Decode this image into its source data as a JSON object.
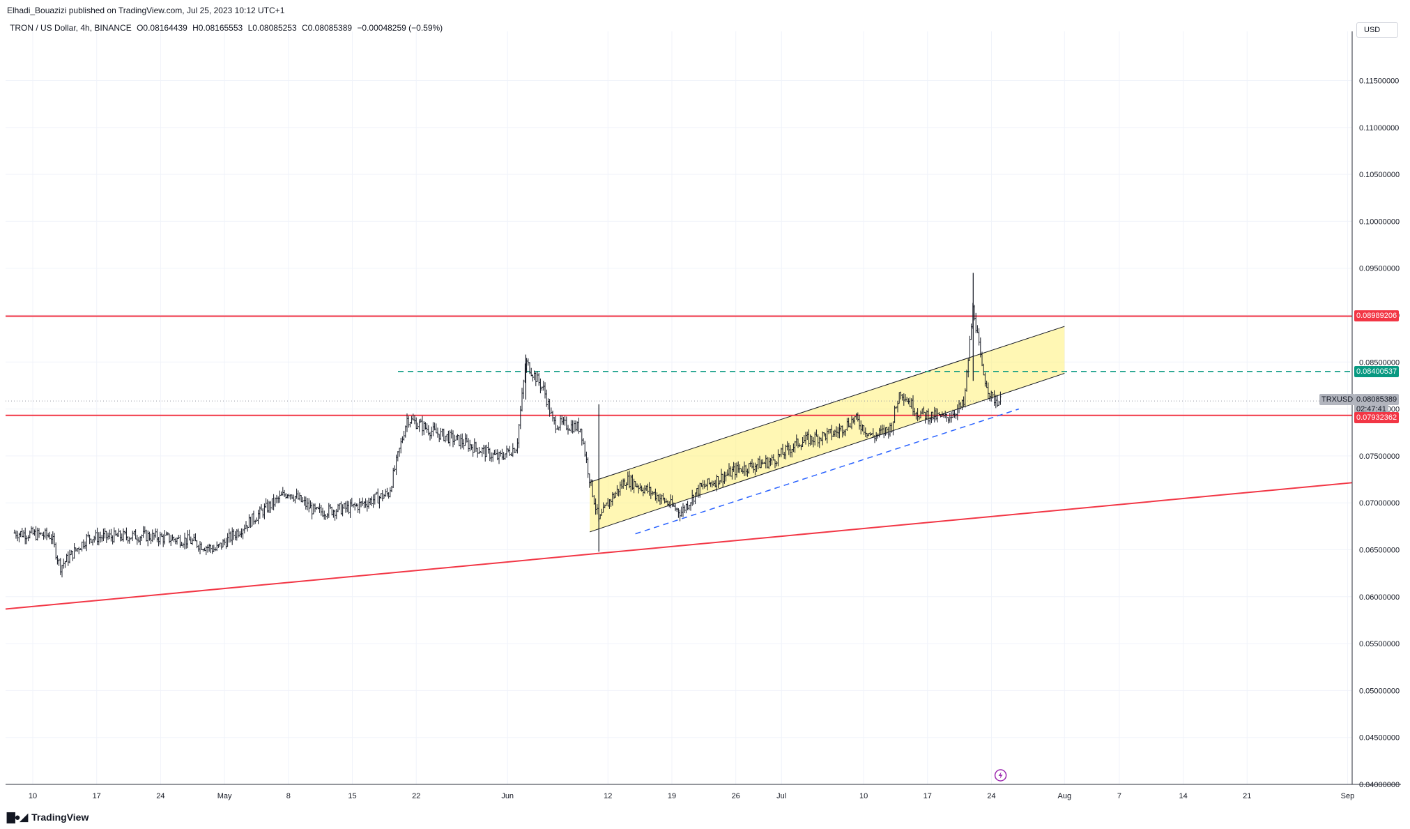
{
  "header": {
    "publisher_line": "Elhadi_Bouazizi published on TradingView.com, Jul 25, 2023 10:12 UTC+1"
  },
  "symbol": {
    "name": "TRON / US Dollar, 4h, BINANCE",
    "open": "O0.08164439",
    "high": "H0.08165553",
    "low": "L0.08085253",
    "close": "C0.08085389",
    "change": "−0.00048259 (−0.59%)"
  },
  "currency_button": "USD",
  "footer": {
    "brand": "TradingView"
  },
  "price_tags": {
    "resistance_top": "0.08989206",
    "dashed_level": "0.08400537",
    "last_price": "0.08085389",
    "countdown": "02:47:41",
    "ticker": "TRXUSD",
    "support": "0.07932362"
  },
  "colors": {
    "red_line": "#f23645",
    "green_tag": "#089981",
    "channel_fill": "#fff176",
    "blue_dash": "#2962ff",
    "candle": "#131722"
  },
  "chart_data": {
    "type": "candlestick",
    "title": "TRON / US Dollar, 4h, BINANCE",
    "y_axis": {
      "ticks": [
        "0.04000000",
        "0.04500000",
        "0.05000000",
        "0.05500000",
        "0.06000000",
        "0.06500000",
        "0.07000000",
        "0.07500000",
        "0.08000000",
        "0.08500000",
        "0.09000000",
        "0.09500000",
        "0.10000000",
        "0.10500000",
        "0.11000000",
        "0.11500000"
      ],
      "range": [
        0.04,
        0.119
      ]
    },
    "x_axis": {
      "ticks": [
        "10",
        "17",
        "24",
        "May",
        "8",
        "15",
        "22",
        "Jun",
        "12",
        "19",
        "26",
        "Jul",
        "10",
        "17",
        "24",
        "Aug",
        "7",
        "14",
        "21",
        "Sep"
      ]
    },
    "horizontal_levels": [
      {
        "value": 0.08989206,
        "style": "solid-red"
      },
      {
        "value": 0.07932362,
        "style": "solid-red"
      },
      {
        "value": 0.08400537,
        "style": "dashed-green"
      }
    ],
    "price_path": [
      [
        "Apr 8",
        0.0668
      ],
      [
        "Apr 12",
        0.0665
      ],
      [
        "Apr 13",
        0.0632
      ],
      [
        "Apr 16",
        0.0663
      ],
      [
        "Apr 22",
        0.0665
      ],
      [
        "Apr 27",
        0.066
      ],
      [
        "Apr 30",
        0.065
      ],
      [
        "May 5",
        0.069
      ],
      [
        "May 8",
        0.0712
      ],
      [
        "May 11",
        0.069
      ],
      [
        "May 15",
        0.0695
      ],
      [
        "May 19",
        0.071
      ],
      [
        "May 21",
        0.079
      ],
      [
        "May 24",
        0.0775
      ],
      [
        "May 27",
        0.0765
      ],
      [
        "May 31",
        0.0748
      ],
      [
        "Jun 2",
        0.076
      ],
      [
        "Jun 3",
        0.085
      ],
      [
        "Jun 5",
        0.082
      ],
      [
        "Jun 6",
        0.0785
      ],
      [
        "Jun 9",
        0.078
      ],
      [
        "Jun 10",
        0.0725
      ],
      [
        "Jun 11",
        0.068
      ],
      [
        "Jun 12",
        0.07
      ],
      [
        "Jun 14",
        0.0725
      ],
      [
        "Jun 17",
        0.071
      ],
      [
        "Jun 20",
        0.069
      ],
      [
        "Jun 22",
        0.0715
      ],
      [
        "Jun 26",
        0.0735
      ],
      [
        "Jun 30",
        0.0745
      ],
      [
        "Jul 3",
        0.0765
      ],
      [
        "Jul 7",
        0.0775
      ],
      [
        "Jul 9",
        0.079
      ],
      [
        "Jul 11",
        0.077
      ],
      [
        "Jul 13",
        0.078
      ],
      [
        "Jul 14",
        0.082
      ],
      [
        "Jul 16",
        0.0795
      ],
      [
        "Jul 19",
        0.079
      ],
      [
        "Jul 21",
        0.0805
      ],
      [
        "Jul 22",
        0.091
      ],
      [
        "Jul 23",
        0.084
      ],
      [
        "Jul 24",
        0.0812
      ],
      [
        "Jul 25",
        0.0808
      ]
    ],
    "trendlines": [
      {
        "style": "solid-red",
        "from": [
          "Apr 5",
          0.0585
        ],
        "to": [
          "Sep 1",
          0.0721
        ]
      },
      {
        "style": "dashed-blue",
        "from": [
          "Jun 15",
          0.0667
        ],
        "to": [
          "Jul 27",
          0.08
        ]
      }
    ],
    "channel": {
      "upper": {
        "from": [
          "Jun 10",
          0.0722
        ],
        "to": [
          "Aug 1",
          0.0888
        ]
      },
      "lower": {
        "from": [
          "Jun 10",
          0.0669
        ],
        "to": [
          "Aug 1",
          0.0838
        ]
      }
    },
    "grid": true
  }
}
